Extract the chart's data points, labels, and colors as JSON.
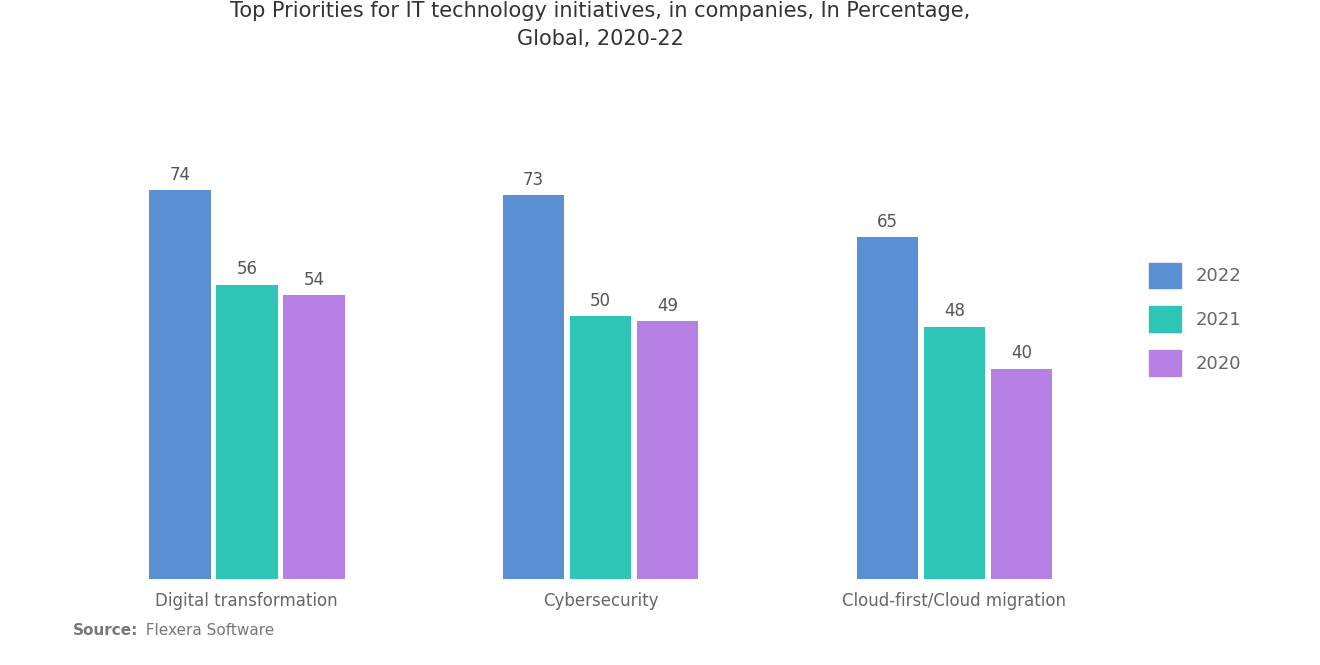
{
  "title": "Top Priorities for IT technology initiatives, in companies, In Percentage,\nGlobal, 2020-22",
  "categories": [
    "Digital transformation",
    "Cybersecurity",
    "Cloud-first/Cloud migration"
  ],
  "years": [
    "2022",
    "2021",
    "2020"
  ],
  "values": {
    "2022": [
      74,
      73,
      65
    ],
    "2021": [
      56,
      50,
      48
    ],
    "2020": [
      54,
      49,
      40
    ]
  },
  "colors": {
    "2022": "#5B8FD4",
    "2021": "#2EC4B6",
    "2020": "#B57FE3"
  },
  "bar_width": 0.18,
  "ylim": [
    0,
    95
  ],
  "source_bold": "Source:",
  "source_rest": "  Flexera Software",
  "background_color": "#FFFFFF",
  "title_fontsize": 15,
  "label_fontsize": 12,
  "value_fontsize": 12,
  "legend_fontsize": 13
}
